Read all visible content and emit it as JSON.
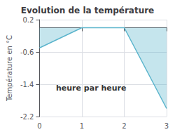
{
  "chart_data": {
    "type": "line",
    "title": "Evolution de la température",
    "ylabel": "Température en °C",
    "annotations": [
      "heure par heure"
    ],
    "x": [
      0,
      1,
      2,
      3
    ],
    "values": [
      -0.5,
      0.0,
      0.0,
      -2.0
    ],
    "color": "#5ab4cc",
    "xlim": [
      0,
      3
    ],
    "xticks": [
      0,
      1,
      2,
      3
    ],
    "ylim": [
      -2.2,
      0.2
    ],
    "yticks": [
      0.2,
      -0.6,
      -1.4,
      -2.2
    ],
    "grid": true
  }
}
